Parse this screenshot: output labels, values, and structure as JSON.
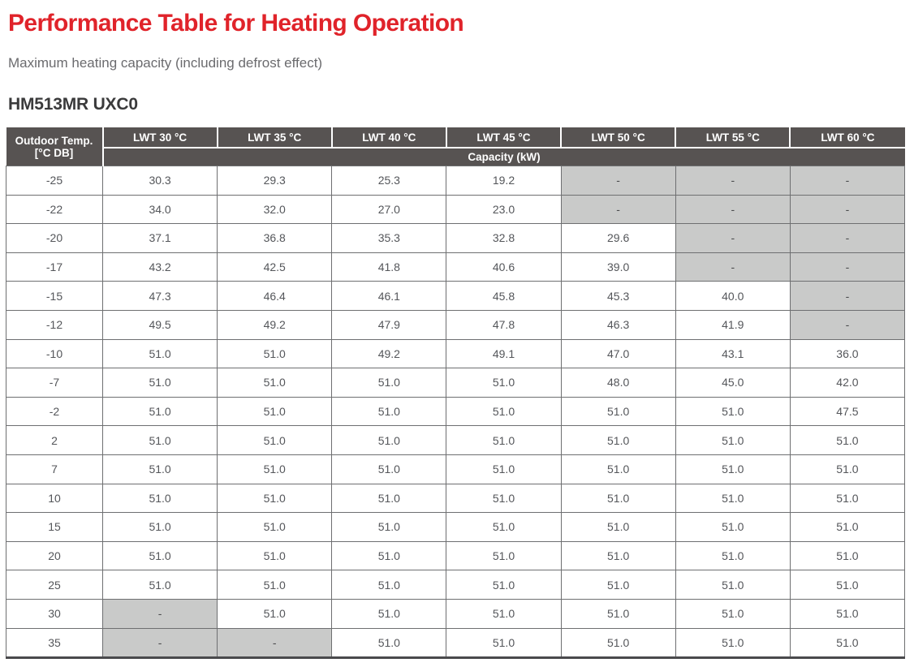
{
  "header": {
    "title": "Performance Table for Heating Operation",
    "subtitle": "Maximum heating capacity (including defrost effect)",
    "model": "HM513MR UXC0"
  },
  "colors": {
    "title_red": "#e0232a",
    "table_header_bg": "#575352",
    "disabled_cell_bg": "#c9cac9"
  },
  "table": {
    "corner_header": {
      "line1": "Outdoor Temp.",
      "line2": "[°C DB]"
    },
    "columns": [
      "LWT 30 °C",
      "LWT 35 °C",
      "LWT 40 °C",
      "LWT 45 °C",
      "LWT 50 °C",
      "LWT 55 °C",
      "LWT 60 °C"
    ],
    "capacity_header": "Capacity (kW)",
    "rows": [
      {
        "temp": "-25",
        "values": [
          "30.3",
          "29.3",
          "25.3",
          "19.2",
          "-",
          "-",
          "-"
        ]
      },
      {
        "temp": "-22",
        "values": [
          "34.0",
          "32.0",
          "27.0",
          "23.0",
          "-",
          "-",
          "-"
        ]
      },
      {
        "temp": "-20",
        "values": [
          "37.1",
          "36.8",
          "35.3",
          "32.8",
          "29.6",
          "-",
          "-"
        ]
      },
      {
        "temp": "-17",
        "values": [
          "43.2",
          "42.5",
          "41.8",
          "40.6",
          "39.0",
          "-",
          "-"
        ]
      },
      {
        "temp": "-15",
        "values": [
          "47.3",
          "46.4",
          "46.1",
          "45.8",
          "45.3",
          "40.0",
          "-"
        ]
      },
      {
        "temp": "-12",
        "values": [
          "49.5",
          "49.2",
          "47.9",
          "47.8",
          "46.3",
          "41.9",
          "-"
        ]
      },
      {
        "temp": "-10",
        "values": [
          "51.0",
          "51.0",
          "49.2",
          "49.1",
          "47.0",
          "43.1",
          "36.0"
        ]
      },
      {
        "temp": "-7",
        "values": [
          "51.0",
          "51.0",
          "51.0",
          "51.0",
          "48.0",
          "45.0",
          "42.0"
        ]
      },
      {
        "temp": "-2",
        "values": [
          "51.0",
          "51.0",
          "51.0",
          "51.0",
          "51.0",
          "51.0",
          "47.5"
        ]
      },
      {
        "temp": "2",
        "values": [
          "51.0",
          "51.0",
          "51.0",
          "51.0",
          "51.0",
          "51.0",
          "51.0"
        ]
      },
      {
        "temp": "7",
        "values": [
          "51.0",
          "51.0",
          "51.0",
          "51.0",
          "51.0",
          "51.0",
          "51.0"
        ]
      },
      {
        "temp": "10",
        "values": [
          "51.0",
          "51.0",
          "51.0",
          "51.0",
          "51.0",
          "51.0",
          "51.0"
        ]
      },
      {
        "temp": "15",
        "values": [
          "51.0",
          "51.0",
          "51.0",
          "51.0",
          "51.0",
          "51.0",
          "51.0"
        ]
      },
      {
        "temp": "20",
        "values": [
          "51.0",
          "51.0",
          "51.0",
          "51.0",
          "51.0",
          "51.0",
          "51.0"
        ]
      },
      {
        "temp": "25",
        "values": [
          "51.0",
          "51.0",
          "51.0",
          "51.0",
          "51.0",
          "51.0",
          "51.0"
        ]
      },
      {
        "temp": "30",
        "values": [
          "-",
          "51.0",
          "51.0",
          "51.0",
          "51.0",
          "51.0",
          "51.0"
        ]
      },
      {
        "temp": "35",
        "values": [
          "-",
          "-",
          "51.0",
          "51.0",
          "51.0",
          "51.0",
          "51.0"
        ]
      }
    ]
  }
}
